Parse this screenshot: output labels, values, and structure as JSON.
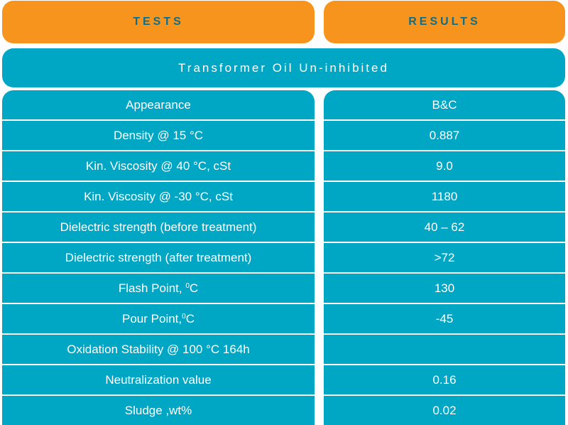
{
  "header": {
    "tests_label": "TESTS",
    "results_label": "RESULTS"
  },
  "subtitle": "Transformer Oil Un-inhibited",
  "rows": [
    {
      "test": "Appearance",
      "result": "B&C"
    },
    {
      "test": "Density @ 15 °C",
      "result": "0.887"
    },
    {
      "test": "Kin. Viscosity @ 40 °C, cSt",
      "result": "9.0"
    },
    {
      "test": "Kin. Viscosity @ -30 °C, cSt",
      "result": "1180"
    },
    {
      "test": "Dielectric strength (before treatment)",
      "result": "40 – 62"
    },
    {
      "test": "Dielectric strength (after treatment)",
      "result": ">72"
    },
    {
      "test_prefix": "Flash Point, ",
      "test_sup": "0",
      "test_suffix": "C",
      "result": "130"
    },
    {
      "test_prefix": "Pour Point,",
      "test_sup": "0",
      "test_suffix": "C",
      "result": "-45"
    },
    {
      "test": "Oxidation Stability @ 100 °C 164h",
      "result": ""
    },
    {
      "test": "Neutralization value",
      "result": "0.16"
    },
    {
      "test": "Sludge ,wt%",
      "result": "0.02"
    }
  ],
  "colors": {
    "header_bg": "#f7941d",
    "header_text": "#0b6f8c",
    "row_bg": "#00a7c4",
    "row_text": "#ffffff"
  }
}
